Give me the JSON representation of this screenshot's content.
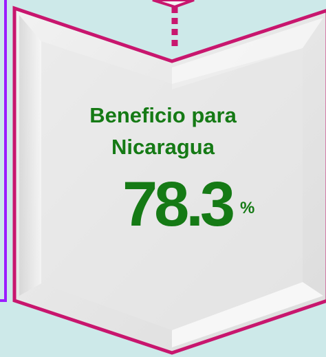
{
  "label_lines": [
    "Beneficio para",
    "Nicaragua"
  ],
  "value": 78.3,
  "unit": "%"
}
